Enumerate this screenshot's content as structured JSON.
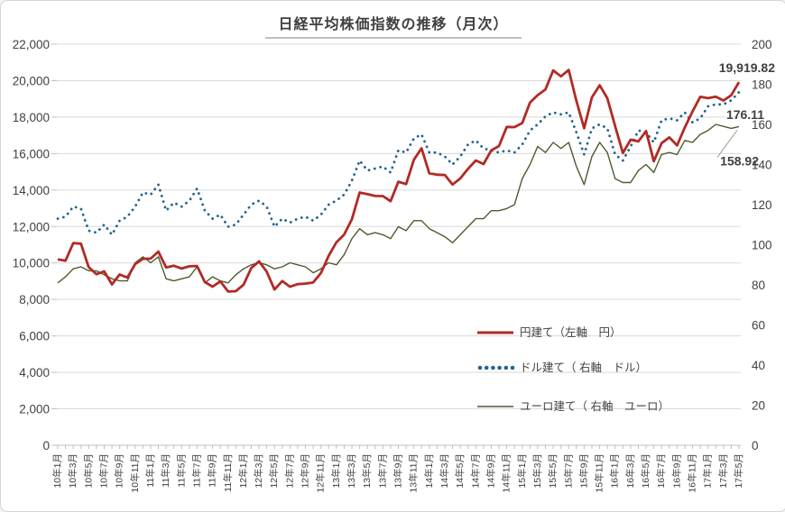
{
  "page": {
    "title": "日経平均株価指数の推移（月次）"
  },
  "chart_data": {
    "type": "line",
    "title": "日経平均株価指数の推移（月次）",
    "x_description": "Monthly, 2010-01 through 2017-05 (89 points), tick labels every 2 months",
    "x_tick_labels": [
      "10年1月",
      "10年3月",
      "10年5月",
      "10年7月",
      "10年9月",
      "10年11月",
      "11年1月",
      "11年3月",
      "11年5月",
      "11年7月",
      "11年9月",
      "11年11月",
      "12年1月",
      "12年3月",
      "12年5月",
      "12年7月",
      "12年9月",
      "12年11月",
      "13年1月",
      "13年3月",
      "13年5月",
      "13年7月",
      "13年9月",
      "13年11月",
      "14年1月",
      "14年3月",
      "14年5月",
      "14年7月",
      "14年9月",
      "14年11月",
      "15年1月",
      "15年3月",
      "15年5月",
      "15年7月",
      "15年9月",
      "15年11月",
      "16年1月",
      "16年3月",
      "16年5月",
      "16年7月",
      "16年9月",
      "16年11月",
      "17年1月",
      "17年3月",
      "17年5月"
    ],
    "x_label_interval": 2,
    "left_axis": {
      "min": 0,
      "max": 22000,
      "step": 2000,
      "tick_labels": [
        "0",
        "2,000",
        "4,000",
        "6,000",
        "8,000",
        "10,000",
        "12,000",
        "14,000",
        "16,000",
        "18,000",
        "20,000",
        "22,000"
      ]
    },
    "right_axis": {
      "min": 0,
      "max": 200,
      "step": 20,
      "tick_labels": [
        "0",
        "20",
        "40",
        "60",
        "80",
        "100",
        "120",
        "140",
        "160",
        "180",
        "200"
      ]
    },
    "grid": "horizontal",
    "legend_position": "inside lower right",
    "series": [
      {
        "name": "円建て（左軸　円）",
        "axis": "left",
        "style": "solid-thick",
        "color": "#b22a24",
        "end_label": "19,919.82",
        "values": [
          10198,
          10126,
          11090,
          11057,
          9769,
          9383,
          9537,
          8824,
          9369,
          9202,
          9937,
          10229,
          10238,
          10624,
          9755,
          9850,
          9694,
          9816,
          9833,
          8955,
          8700,
          8988,
          8435,
          8455,
          8803,
          9723,
          10084,
          9521,
          8543,
          9007,
          8695,
          8840,
          8870,
          8928,
          9446,
          10395,
          11139,
          11559,
          12398,
          13861,
          13775,
          13677,
          13668,
          13389,
          14456,
          14328,
          15662,
          16291,
          14915,
          14841,
          14828,
          14304,
          14632,
          15162,
          15621,
          15425,
          16174,
          16414,
          17460,
          17451,
          17674,
          18798,
          19207,
          19520,
          20563,
          20236,
          20585,
          18890,
          17388,
          19083,
          19747,
          19034,
          17518,
          16027,
          16759,
          16666,
          17235,
          15576,
          16569,
          16887,
          16450,
          17425,
          18308,
          19114,
          19041,
          19119,
          18909,
          19197,
          19919.82
        ]
      },
      {
        "name": "ドル建て（ 右軸　ドル）",
        "axis": "right",
        "style": "dotted",
        "color": "#24648f",
        "end_label": "176.11",
        "values": [
          113,
          114,
          119,
          118,
          107,
          106,
          110,
          105,
          112,
          114,
          119,
          126,
          125,
          130,
          117,
          121,
          119,
          122,
          128,
          117,
          113,
          115,
          109,
          110,
          115,
          120,
          122,
          119,
          109,
          113,
          111,
          113,
          114,
          112,
          115,
          120,
          122,
          125,
          132,
          142,
          137,
          138,
          139,
          136,
          147,
          146,
          153,
          155,
          146,
          146,
          144,
          140,
          144,
          150,
          152,
          148,
          147,
          146,
          147,
          146,
          150,
          157,
          160,
          164,
          166,
          165,
          166,
          156,
          145,
          158,
          160,
          158,
          145,
          142,
          149,
          157,
          156,
          151,
          162,
          163,
          162,
          166,
          161,
          163,
          169,
          170,
          170,
          172,
          176.11
        ]
      },
      {
        "name": "ユーロ建て（ 右軸　ユーロ）",
        "axis": "right",
        "style": "solid-thin",
        "color": "#4e5b2f",
        "end_label": "158.92",
        "values": [
          81,
          84,
          88,
          89,
          87,
          87,
          85,
          83,
          82,
          82,
          91,
          94,
          91,
          94,
          83,
          82,
          83,
          84,
          89,
          81,
          84,
          82,
          81,
          85,
          88,
          90,
          91,
          90,
          88,
          89,
          91,
          90,
          89,
          86,
          88,
          91,
          90,
          95,
          103,
          108,
          105,
          106,
          105,
          103,
          109,
          107,
          112,
          112,
          108,
          106,
          104,
          101,
          105,
          109,
          113,
          113,
          117,
          117,
          118,
          120,
          133,
          140,
          149,
          146,
          151,
          148,
          151,
          139,
          130,
          144,
          151,
          146,
          133,
          131,
          131,
          137,
          140,
          136,
          145,
          146,
          145,
          152,
          151,
          155,
          157,
          160,
          159,
          158,
          158.92
        ]
      }
    ],
    "colors": {
      "grid": "#d9d9d9",
      "axis": "#bfbfbf",
      "axis_text": "#404040",
      "title_underline": "#bfbfbf",
      "label_text": "#3b3b3b"
    }
  }
}
